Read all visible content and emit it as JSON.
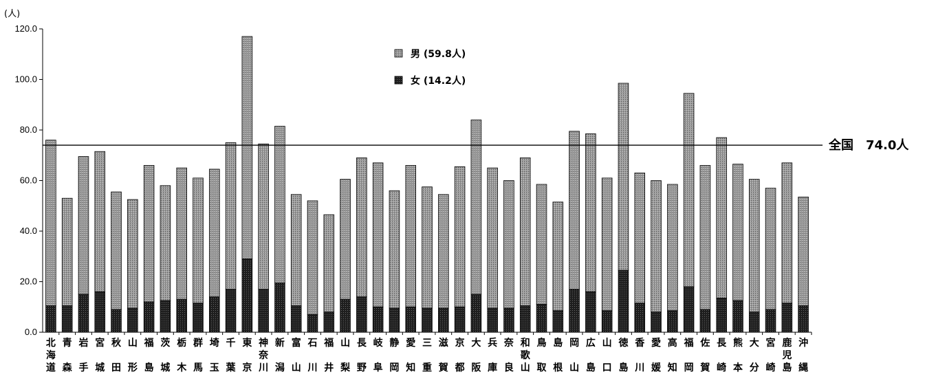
{
  "chart_data": {
    "type": "bar",
    "stacked": true,
    "y_unit": "(人)",
    "ylim": [
      0,
      120
    ],
    "yticks": [
      "0.0",
      "20.0",
      "40.0",
      "60.0",
      "80.0",
      "100.0",
      "120.0"
    ],
    "categories": [
      "北海道",
      "青森",
      "岩手",
      "宮城",
      "秋田",
      "山形",
      "福島",
      "茨城",
      "栃木",
      "群馬",
      "埼玉",
      "千葉",
      "東京",
      "神奈川",
      "新潟",
      "富山",
      "石川",
      "福井",
      "山梨",
      "長野",
      "岐阜",
      "静岡",
      "愛知",
      "三重",
      "滋賀",
      "京都",
      "大阪",
      "兵庫",
      "奈良",
      "和歌山",
      "鳥取",
      "島根",
      "岡山",
      "広島",
      "山口",
      "徳島",
      "香川",
      "愛媛",
      "高知",
      "福岡",
      "佐賀",
      "長崎",
      "熊本",
      "大分",
      "宮崎",
      "鹿児島",
      "沖縄"
    ],
    "series": [
      {
        "name": "女 (14.2人)",
        "color": "#1e1e1e",
        "values": [
          10.5,
          10.5,
          15,
          16,
          9,
          9.5,
          12,
          12.5,
          13,
          11.5,
          14,
          17,
          29,
          17,
          19.5,
          10.5,
          7,
          8,
          13,
          14,
          10,
          9.5,
          10,
          9.5,
          9.5,
          10,
          15,
          9.5,
          9.5,
          10.5,
          11,
          8.5,
          17,
          16,
          8.5,
          24.5,
          11.5,
          8,
          8.5,
          18,
          9,
          13.5,
          12.5,
          8,
          9,
          11.5,
          10.5
        ]
      },
      {
        "name": "男 (59.8人)",
        "color": "#8e8e8e",
        "values": [
          65.5,
          42.5,
          54.5,
          55.5,
          46.5,
          43,
          54,
          45.5,
          52,
          49.5,
          50.5,
          58,
          88,
          57.5,
          62,
          44,
          45,
          38.5,
          47.5,
          55,
          57,
          46.5,
          56,
          48,
          45,
          55.5,
          69,
          55.5,
          50.5,
          58.5,
          47.5,
          43,
          62.5,
          62.5,
          52.5,
          74,
          51.5,
          52,
          50,
          76.5,
          57,
          63.5,
          54,
          52.5,
          48,
          55.5,
          43
        ]
      }
    ],
    "reference_line": {
      "value": 74.0,
      "label": "全国　74.0人"
    },
    "legend_position": "top-center",
    "grid": false
  }
}
